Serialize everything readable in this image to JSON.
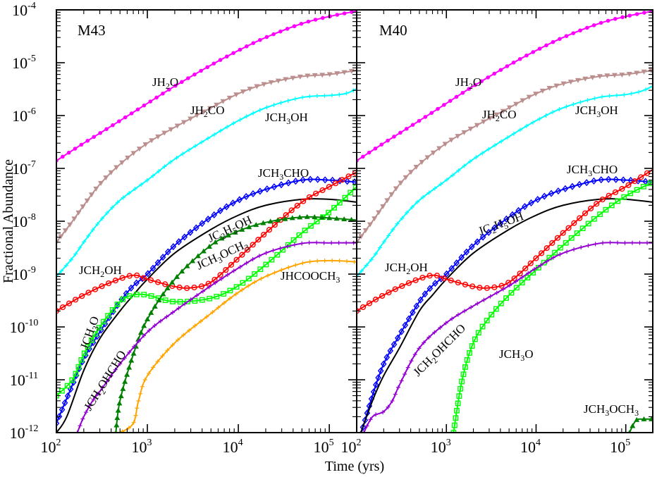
{
  "chart_data": {
    "type": "line",
    "xlabel": "Time (yrs)",
    "ylabel": "Fractional Abundance",
    "xscale": "log",
    "yscale": "log",
    "xlim": [
      100,
      200000
    ],
    "ylim": [
      1e-12,
      0.0001
    ],
    "x_ticks": [
      {
        "base": "10",
        "exp": "2"
      },
      {
        "base": "10",
        "exp": "3"
      },
      {
        "base": "10",
        "exp": "4"
      },
      {
        "base": "10",
        "exp": "5"
      }
    ],
    "y_ticks": [
      {
        "base": "10",
        "exp": "-12"
      },
      {
        "base": "10",
        "exp": "-11"
      },
      {
        "base": "10",
        "exp": "-10"
      },
      {
        "base": "10",
        "exp": "-9"
      },
      {
        "base": "10",
        "exp": "-8"
      },
      {
        "base": "10",
        "exp": "-7"
      },
      {
        "base": "10",
        "exp": "-6"
      },
      {
        "base": "10",
        "exp": "-5"
      },
      {
        "base": "10",
        "exp": "-4"
      }
    ],
    "panels": [
      {
        "title": "M43",
        "series": [
          {
            "name": "JH2O",
            "color": "#ff00ff",
            "marker": "circle-filled",
            "x": [
              100,
              200,
              500,
              1000,
              2000,
              5000,
              10000,
              20000,
              50000,
              100000,
              200000
            ],
            "y": [
              1.4e-07,
              3e-07,
              8e-07,
              1.7e-06,
              3.6e-06,
              9e-06,
              1.7e-05,
              3e-05,
              5.5e-05,
              7.5e-05,
              9.5e-05
            ]
          },
          {
            "name": "JH2CO",
            "color": "#bc8f8f",
            "marker": "triangle-down",
            "x": [
              100,
              150,
              200,
              300,
              500,
              1000,
              2000,
              5000,
              10000,
              20000,
              50000,
              100000,
              200000
            ],
            "y": [
              4e-09,
              1e-08,
              2e-08,
              5e-08,
              1.2e-07,
              3e-07,
              6e-07,
              1.4e-06,
              2.6e-06,
              4e-06,
              5.5e-06,
              6e-06,
              7.2e-06
            ]
          },
          {
            "name": "JCH3OH",
            "color": "#00ffff",
            "marker": "plus",
            "x": [
              100,
              150,
              200,
              300,
              500,
              1000,
              2000,
              5000,
              10000,
              20000,
              50000,
              100000,
              150000,
              200000
            ],
            "y": [
              9e-10,
              2e-09,
              4e-09,
              1e-08,
              2.5e-08,
              6e-08,
              1.5e-07,
              4e-07,
              8e-07,
              1.4e-06,
              2.2e-06,
              2.4e-06,
              2.6e-06,
              3.2e-06
            ]
          },
          {
            "name": "JCH3CHO",
            "color": "#0000ff",
            "marker": "diamond",
            "x": [
              100,
              150,
              200,
              300,
              500,
              700,
              1000,
              2000,
              5000,
              10000,
              20000,
              50000,
              100000,
              200000
            ],
            "y": [
              1.5e-12,
              8e-12,
              2.5e-11,
              8e-11,
              3e-10,
              6e-10,
              1e-09,
              3.5e-09,
              1.2e-08,
              2.5e-08,
              4e-08,
              6e-08,
              6e-08,
              5.5e-08
            ]
          },
          {
            "name": "JC2H5OH",
            "color": "#000000",
            "marker": "none",
            "x": [
              100,
              130,
              200,
              300,
              500,
              700,
              1000,
              2000,
              5000,
              10000,
              20000,
              50000,
              100000,
              200000
            ],
            "y": [
              1e-12,
              2e-12,
              1.5e-11,
              6e-11,
              2e-10,
              4e-10,
              8e-10,
              2.5e-09,
              7e-09,
              1.3e-08,
              2e-08,
              2.6e-08,
              2.6e-08,
              2.3e-08
            ]
          },
          {
            "name": "JCH2OH",
            "color": "#ff0000",
            "marker": "circle-open",
            "x": [
              100,
              200,
              400,
              700,
              1000,
              2000,
              3000,
              5000,
              10000,
              20000,
              50000,
              100000,
              200000
            ],
            "y": [
              2e-10,
              4e-10,
              7e-10,
              9.5e-10,
              8e-10,
              5.8e-10,
              5.5e-10,
              7e-10,
              2e-09,
              6e-09,
              2.3e-08,
              4.5e-08,
              8.5e-08
            ]
          },
          {
            "name": "JCH3O",
            "color": "#00ff00",
            "marker": "square-open",
            "x": [
              100,
              150,
              200,
              300,
              500,
              700,
              1000,
              2000,
              5000,
              10000,
              20000,
              50000,
              100000,
              200000
            ],
            "y": [
              5e-12,
              1e-11,
              3e-11,
              1e-10,
              3e-10,
              4e-10,
              4e-10,
              3e-10,
              3.5e-10,
              6e-10,
              1.5e-09,
              6e-09,
              1.5e-08,
              4.5e-08
            ]
          },
          {
            "name": "JCH3OCH3",
            "color": "#008000",
            "marker": "triangle-up-filled",
            "x": [
              450,
              500,
              700,
              1000,
              2000,
              5000,
              10000,
              20000,
              50000,
              100000,
              200000
            ],
            "y": [
              1e-12,
              4e-12,
              3e-11,
              1.4e-10,
              8e-10,
              3.5e-09,
              6.5e-09,
              9.5e-09,
              1.2e-08,
              1.15e-08,
              1.05e-08
            ]
          },
          {
            "name": "JCH2OHCHO",
            "color": "#9400d3",
            "marker": "plus",
            "x": [
              170,
              200,
              250,
              300,
              500,
              1000,
              2000,
              5000,
              10000,
              20000,
              50000,
              100000,
              200000
            ],
            "y": [
              1e-12,
              2e-12,
              4e-12,
              6e-12,
              2e-11,
              8e-11,
              2e-10,
              6e-10,
              1.3e-09,
              2.5e-09,
              3.8e-09,
              3.9e-09,
              3.9e-09
            ]
          },
          {
            "name": "JHCOOCH3",
            "color": "#ffa500",
            "marker": "plus",
            "x": [
              300,
              400,
              500,
              700,
              800,
              1000,
              2000,
              5000,
              10000,
              20000,
              50000,
              100000,
              200000
            ],
            "y": [
              5e-13,
              9e-13,
              1e-12,
              1.5e-12,
              4e-12,
              1.2e-11,
              5e-11,
              1.8e-10,
              4.5e-10,
              9e-10,
              1.6e-09,
              1.8e-09,
              1.7e-09
            ]
          }
        ],
        "labels": [
          {
            "id": "h2o",
            "text": "JH",
            "sub": "2",
            "rest": "O"
          },
          {
            "id": "h2co",
            "text": "JH",
            "sub": "2",
            "rest": "CO"
          },
          {
            "id": "ch3oh",
            "text": "JCH",
            "sub": "3",
            "rest": "OH"
          },
          {
            "id": "ch3cho",
            "text": "JCH",
            "sub": "3",
            "rest": "CHO"
          },
          {
            "id": "c2h5oh",
            "text": "JC",
            "sub": "2",
            "mid": "H",
            "sub2": "5",
            "rest": "OH"
          },
          {
            "id": "ch3och3",
            "text": "JCH",
            "sub": "3",
            "mid": "OCH",
            "sub2": "3",
            "rest": ""
          },
          {
            "id": "ch2oh",
            "text": "JCH",
            "sub": "2",
            "rest": "OH"
          },
          {
            "id": "hcooch3",
            "text": "JHCOOCH",
            "sub": "3",
            "rest": ""
          },
          {
            "id": "ch3o",
            "text": "JCH",
            "sub": "3",
            "rest": "O"
          },
          {
            "id": "ch2ohcho",
            "text": "JCH",
            "sub": "2",
            "rest": "OHCHO"
          }
        ]
      },
      {
        "title": "M40",
        "series": [
          {
            "name": "JH2O",
            "color": "#ff00ff",
            "marker": "circle-filled",
            "x": [
              100,
              200,
              500,
              1000,
              2000,
              5000,
              10000,
              20000,
              50000,
              100000,
              200000
            ],
            "y": [
              1.4e-07,
              3e-07,
              8e-07,
              1.7e-06,
              3.6e-06,
              9e-06,
              1.7e-05,
              3e-05,
              5.5e-05,
              7.5e-05,
              9.5e-05
            ]
          },
          {
            "name": "JH2CO",
            "color": "#bc8f8f",
            "marker": "triangle-down",
            "x": [
              100,
              150,
              200,
              300,
              500,
              1000,
              2000,
              5000,
              10000,
              20000,
              50000,
              100000,
              200000
            ],
            "y": [
              4e-09,
              1e-08,
              2e-08,
              5e-08,
              1.2e-07,
              3e-07,
              6e-07,
              1.4e-06,
              2.6e-06,
              4e-06,
              5.5e-06,
              6e-06,
              7.2e-06
            ]
          },
          {
            "name": "JCH3OH",
            "color": "#00ffff",
            "marker": "plus",
            "x": [
              100,
              150,
              200,
              300,
              500,
              1000,
              2000,
              5000,
              10000,
              20000,
              50000,
              100000,
              150000,
              200000
            ],
            "y": [
              9e-10,
              2e-09,
              4e-09,
              1e-08,
              2.5e-08,
              6e-08,
              1.5e-07,
              4e-07,
              8e-07,
              1.4e-06,
              2.2e-06,
              2.5e-06,
              2.9e-06,
              3.6e-06
            ]
          },
          {
            "name": "JCH3CHO",
            "color": "#0000ff",
            "marker": "diamond",
            "x": [
              100,
              150,
              200,
              300,
              500,
              700,
              1000,
              2000,
              5000,
              10000,
              20000,
              50000,
              100000,
              200000
            ],
            "y": [
              5e-13,
              5e-12,
              2e-11,
              7e-11,
              3e-10,
              6e-10,
              1e-09,
              3.5e-09,
              1.2e-08,
              2.5e-08,
              4e-08,
              6e-08,
              6e-08,
              5.5e-08
            ]
          },
          {
            "name": "JC2H5OH",
            "color": "#000000",
            "marker": "none",
            "x": [
              100,
              150,
              200,
              300,
              500,
              700,
              1000,
              2000,
              5000,
              10000,
              20000,
              50000,
              100000,
              200000
            ],
            "y": [
              6e-13,
              4e-12,
              1.2e-11,
              4e-11,
              2e-10,
              4e-10,
              8e-10,
              2.5e-09,
              7e-09,
              1.3e-08,
              2e-08,
              2.6e-08,
              2.6e-08,
              2.3e-08
            ]
          },
          {
            "name": "JCH2OH",
            "color": "#ff0000",
            "marker": "circle-open",
            "x": [
              100,
              200,
              400,
              700,
              1000,
              2000,
              3000,
              5000,
              10000,
              20000,
              50000,
              100000,
              200000
            ],
            "y": [
              2e-10,
              4e-10,
              7e-10,
              9.5e-10,
              8e-10,
              5.8e-10,
              5.5e-10,
              7e-10,
              2e-09,
              6e-09,
              2.3e-08,
              4.5e-08,
              9.5e-08
            ]
          },
          {
            "name": "JCH3O",
            "color": "#00ff00",
            "marker": "square-open",
            "x": [
              1200,
              1500,
              2000,
              3000,
              5000,
              10000,
              20000,
              50000,
              100000,
              200000
            ],
            "y": [
              1e-12,
              1e-11,
              5e-11,
              1.5e-10,
              4e-10,
              1.2e-09,
              3.5e-09,
              1.3e-08,
              3e-08,
              5.5e-08
            ]
          },
          {
            "name": "JCH3OCH3",
            "color": "#008000",
            "marker": "triangle-up-filled",
            "x": [
              110000,
              130000,
              160000,
              200000
            ],
            "y": [
              1e-12,
              1.7e-12,
              1.8e-12,
              1.8e-12
            ]
          },
          {
            "name": "JCH2OHCHO",
            "color": "#9400d3",
            "marker": "plus",
            "x": [
              120,
              150,
              200,
              250,
              300,
              500,
              1000,
              2000,
              5000,
              10000,
              20000,
              50000,
              100000,
              200000
            ],
            "y": [
              1e-12,
              2e-12,
              2.5e-12,
              4e-12,
              8e-12,
              4e-11,
              1.2e-10,
              2.5e-10,
              6e-10,
              1.3e-09,
              2.5e-09,
              3.8e-09,
              3.9e-09,
              3.9e-09
            ]
          }
        ],
        "labels": [
          {
            "id": "h2o",
            "text": "JH",
            "sub": "2",
            "rest": "O"
          },
          {
            "id": "h2co",
            "text": "JH",
            "sub": "2",
            "rest": "CO"
          },
          {
            "id": "ch3oh",
            "text": "JCH",
            "sub": "3",
            "rest": "OH"
          },
          {
            "id": "ch3cho",
            "text": "JCH",
            "sub": "3",
            "rest": "CHO"
          },
          {
            "id": "c2h5oh",
            "text": "JC",
            "sub": "2",
            "mid": "H",
            "sub2": "5",
            "rest": "OH"
          },
          {
            "id": "ch2oh",
            "text": "JCH",
            "sub": "2",
            "rest": "OH"
          },
          {
            "id": "ch2ohcho",
            "text": "JCH",
            "sub": "2",
            "rest": "OHCHO"
          },
          {
            "id": "ch3o",
            "text": "JCH",
            "sub": "3",
            "rest": "O"
          },
          {
            "id": "ch3och3",
            "text": "JCH",
            "sub": "3",
            "mid": "OCH",
            "sub2": "3",
            "rest": ""
          }
        ]
      }
    ]
  }
}
